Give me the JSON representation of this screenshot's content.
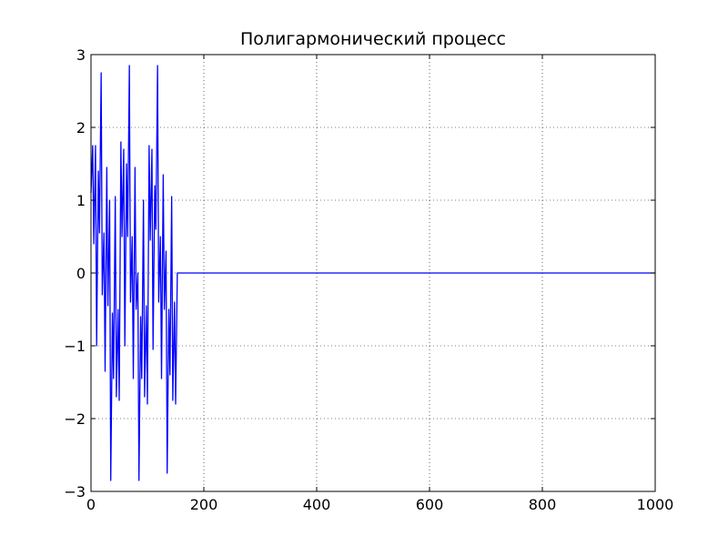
{
  "chart_data": {
    "type": "line",
    "title": "Полигармонический процесс",
    "xlabel": "",
    "ylabel": "",
    "xlim": [
      0,
      1000
    ],
    "ylim": [
      -3,
      3
    ],
    "x_ticks": [
      0,
      200,
      400,
      600,
      800,
      1000
    ],
    "y_ticks": [
      -3,
      -2,
      -1,
      0,
      1,
      2,
      3
    ],
    "x_tick_labels": [
      "0",
      "200",
      "400",
      "600",
      "800",
      "1000"
    ],
    "y_tick_labels": [
      "−3",
      "−2",
      "−1",
      "0",
      "1",
      "2",
      "3"
    ],
    "grid": true,
    "legend": false,
    "series": [
      {
        "color": "#0000ff",
        "x": [
          0,
          3,
          5,
          8,
          10,
          13,
          15,
          18,
          20,
          23,
          25,
          28,
          30,
          33,
          35,
          38,
          40,
          43,
          45,
          48,
          50,
          53,
          55,
          58,
          60,
          63,
          65,
          68,
          70,
          73,
          75,
          78,
          80,
          83,
          85,
          88,
          90,
          93,
          95,
          98,
          100,
          103,
          105,
          108,
          110,
          113,
          115,
          118,
          120,
          123,
          125,
          128,
          130,
          133,
          135,
          138,
          140,
          143,
          145,
          148,
          150,
          153,
          155,
          158,
          160,
          163,
          165,
          168,
          170,
          173,
          175,
          178,
          180,
          183,
          185,
          188,
          190,
          193,
          195,
          198,
          200,
          201,
          300,
          400,
          500,
          600,
          700,
          800,
          900,
          1000
        ],
        "y": [
          1.1,
          1.75,
          0.4,
          1.75,
          -1.0,
          1.4,
          0.55,
          2.75,
          -0.3,
          0.55,
          -1.35,
          1.45,
          -0.45,
          1.0,
          -2.85,
          -0.55,
          -1.45,
          1.05,
          -1.7,
          -0.5,
          -1.75,
          1.8,
          0.5,
          1.7,
          -1.0,
          1.5,
          0.5,
          2.85,
          -0.4,
          0.5,
          -1.45,
          1.45,
          -0.5,
          0.0,
          -2.85,
          -0.6,
          -1.45,
          1.0,
          -1.7,
          -0.45,
          -1.8,
          1.75,
          0.45,
          1.7,
          -1.05,
          1.2,
          0.6,
          2.85,
          -0.4,
          0.5,
          -1.45,
          1.35,
          -0.5,
          0.3,
          -2.75,
          -0.5,
          -1.4,
          1.05,
          -1.75,
          -0.4,
          -1.8,
          0.0,
          0.0,
          0.0,
          0.0,
          0.0,
          0.0,
          0.0,
          0.0,
          0.0,
          0.0,
          0.0,
          0.0,
          0.0,
          0.0,
          0.0,
          0.0,
          0.0,
          0.0,
          0.0,
          0.0,
          0.0,
          0.0,
          0.0,
          0.0,
          0.0,
          0.0,
          0.0,
          0.0,
          0.0
        ]
      }
    ]
  }
}
